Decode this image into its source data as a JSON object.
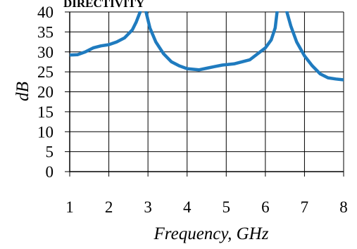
{
  "chart_data": {
    "type": "line",
    "title": "DIRECTIVITY",
    "xlabel": "Frequency, GHz",
    "ylabel": "dB",
    "xlim": [
      1,
      8
    ],
    "ylim": [
      0,
      40
    ],
    "x_ticks": [
      "1",
      "2",
      "3",
      "4",
      "5",
      "6",
      "7",
      "8"
    ],
    "y_ticks": [
      "0",
      "5",
      "10",
      "15",
      "20",
      "25",
      "30",
      "35",
      "40"
    ],
    "grid": true,
    "legend": "none",
    "series_color": "#1f7bbf",
    "series": [
      {
        "segments": [
          [
            [
              1.0,
              29.2
            ],
            [
              1.2,
              29.3
            ],
            [
              1.4,
              30.0
            ],
            [
              1.6,
              31.0
            ],
            [
              1.8,
              31.5
            ],
            [
              2.0,
              31.8
            ],
            [
              2.2,
              32.5
            ],
            [
              2.4,
              33.5
            ],
            [
              2.6,
              35.5
            ],
            [
              2.7,
              37.5
            ],
            [
              2.8,
              40.0
            ]
          ],
          [
            [
              2.95,
              40.0
            ],
            [
              3.05,
              36.0
            ],
            [
              3.2,
              32.5
            ],
            [
              3.4,
              29.5
            ],
            [
              3.6,
              27.5
            ],
            [
              3.8,
              26.5
            ],
            [
              4.0,
              25.8
            ],
            [
              4.3,
              25.5
            ],
            [
              4.5,
              25.9
            ],
            [
              4.7,
              26.3
            ],
            [
              4.9,
              26.7
            ],
            [
              5.2,
              27.0
            ],
            [
              5.4,
              27.5
            ],
            [
              5.6,
              28.0
            ],
            [
              5.8,
              29.5
            ],
            [
              6.0,
              31.0
            ],
            [
              6.15,
              33.0
            ],
            [
              6.25,
              36.0
            ],
            [
              6.3,
              40.0
            ]
          ],
          [
            [
              6.55,
              40.0
            ],
            [
              6.65,
              36.5
            ],
            [
              6.8,
              32.5
            ],
            [
              7.0,
              29.0
            ],
            [
              7.2,
              26.5
            ],
            [
              7.4,
              24.5
            ],
            [
              7.6,
              23.5
            ],
            [
              7.8,
              23.2
            ],
            [
              8.0,
              23.0
            ]
          ]
        ]
      }
    ]
  }
}
